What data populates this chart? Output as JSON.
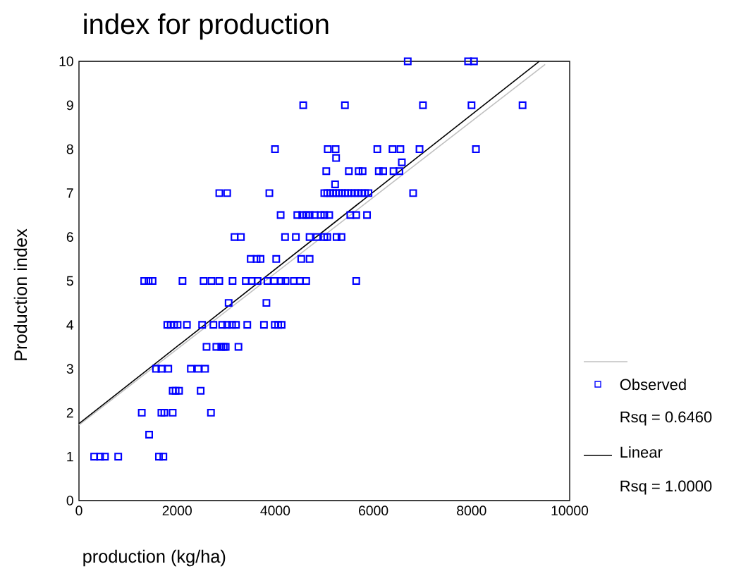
{
  "chart_data": {
    "type": "scatter",
    "title": "index for production",
    "xlabel": "production (kg/ha)",
    "ylabel": "Production index",
    "xlim": [
      0,
      10000
    ],
    "xticks": [
      0,
      2000,
      4000,
      6000,
      8000,
      10000
    ],
    "ylim": [
      0,
      10
    ],
    "yticks": [
      0,
      1,
      2,
      3,
      4,
      5,
      6,
      7,
      8,
      9,
      10
    ],
    "grid": false,
    "legend": "right",
    "marker": "square",
    "annotations": [
      "Rsq = 0.6460",
      "Rsq = 1.0000"
    ],
    "series": [
      {
        "color": "#c0c0c0",
        "type": "line",
        "marker": "none",
        "x": [
          0,
          9500
        ],
        "values": [
          1.72,
          9.93
        ]
      },
      {
        "name": "Observed",
        "color": "#0000ff",
        "x": [
          6700,
          7930,
          8050,
          4570,
          5420,
          7010,
          8000,
          9040,
          3995,
          5070,
          5230,
          6080,
          6390,
          6550,
          6940,
          8090,
          5240,
          6580,
          5040,
          5500,
          5700,
          5780,
          6110,
          6200,
          6410,
          6530,
          5220,
          2860,
          3020,
          3880,
          5000,
          5060,
          5120,
          5180,
          5240,
          5300,
          5360,
          5420,
          5480,
          5550,
          5620,
          5690,
          5760,
          5830,
          5900,
          6810,
          4110,
          4450,
          4550,
          4630,
          4700,
          4800,
          4930,
          5000,
          5100,
          5530,
          5650,
          5870,
          3170,
          3300,
          4200,
          4420,
          4700,
          4850,
          5000,
          5060,
          5250,
          5350,
          3500,
          3620,
          3700,
          4020,
          4530,
          4700,
          1330,
          1420,
          1500,
          2110,
          2540,
          2700,
          2860,
          3130,
          3400,
          3520,
          3640,
          3840,
          3980,
          4120,
          4210,
          4380,
          4500,
          4630,
          5650,
          3050,
          3820,
          1800,
          1870,
          1940,
          2010,
          2200,
          2510,
          2740,
          2920,
          3020,
          3120,
          3200,
          3430,
          3770,
          3990,
          4060,
          4130,
          2600,
          2800,
          2900,
          2950,
          2990,
          3250,
          1570,
          1680,
          1820,
          2280,
          2430,
          2570,
          1910,
          1970,
          2040,
          2480,
          1280,
          1680,
          1740,
          1910,
          2690,
          1430,
          310,
          430,
          530,
          800,
          1630,
          1720
        ],
        "values": [
          10,
          10,
          10,
          9,
          9,
          9,
          9,
          9,
          8,
          8,
          8,
          8,
          8,
          8,
          8,
          8,
          7.8,
          7.7,
          7.5,
          7.5,
          7.5,
          7.5,
          7.5,
          7.5,
          7.5,
          7.5,
          7.2,
          7,
          7,
          7,
          7,
          7,
          7,
          7,
          7,
          7,
          7,
          7,
          7,
          7,
          7,
          7,
          7,
          7,
          7,
          7,
          6.5,
          6.5,
          6.5,
          6.5,
          6.5,
          6.5,
          6.5,
          6.5,
          6.5,
          6.5,
          6.5,
          6.5,
          6,
          6,
          6,
          6,
          6,
          6,
          6,
          6,
          6,
          6,
          5.5,
          5.5,
          5.5,
          5.5,
          5.5,
          5.5,
          5,
          5,
          5,
          5,
          5,
          5,
          5,
          5,
          5,
          5,
          5,
          5,
          5,
          5,
          5,
          5,
          5,
          5,
          5,
          4.5,
          4.5,
          4,
          4,
          4,
          4,
          4,
          4,
          4,
          4,
          4,
          4,
          4,
          4,
          4,
          4,
          4,
          4,
          3.5,
          3.5,
          3.5,
          3.5,
          3.5,
          3.5,
          3,
          3,
          3,
          3,
          3,
          3,
          2.5,
          2.5,
          2.5,
          2.5,
          2,
          2,
          2,
          2,
          2,
          1.5,
          1,
          1,
          1,
          1,
          1,
          1
        ]
      },
      {
        "name": "Linear",
        "color": "#000000",
        "type": "line",
        "marker": "none",
        "x": [
          0,
          9380
        ],
        "values": [
          1.75,
          10
        ]
      }
    ]
  }
}
